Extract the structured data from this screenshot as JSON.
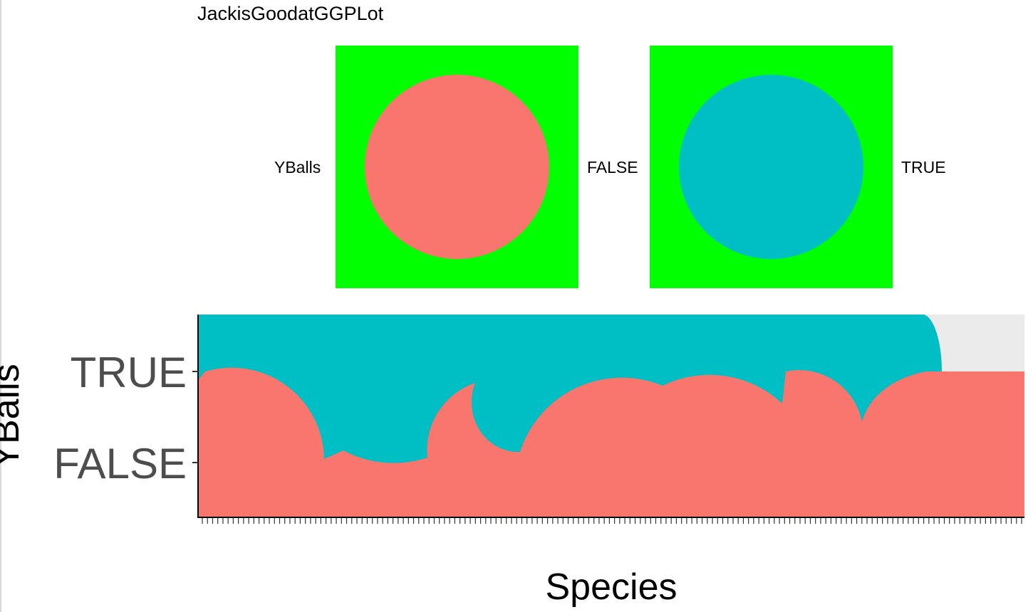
{
  "chart_data": {
    "type": "area",
    "title": "JackisGoodatGGPLot",
    "xlabel": "Species",
    "ylabel": "YBalls",
    "y_categories": [
      "FALSE",
      "TRUE"
    ],
    "legend": {
      "title": "YBalls",
      "placement": "top",
      "background": "#00FF00",
      "items": [
        {
          "label": "FALSE",
          "color": "#F8766D"
        },
        {
          "label": "TRUE",
          "color": "#00BFC4"
        }
      ]
    },
    "panel_background": "#EBEBEB",
    "grid": false,
    "x_tick_count": 160,
    "x_ticklabels_note": "",
    "series": [
      {
        "name": "FALSE",
        "color": "#F8766D"
      },
      {
        "name": "TRUE",
        "color": "#00BFC4"
      }
    ]
  }
}
